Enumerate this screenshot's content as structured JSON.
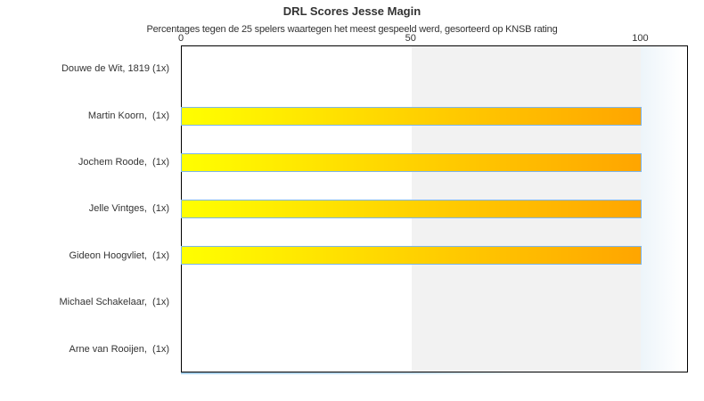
{
  "chart_data": {
    "type": "bar",
    "orientation": "horizontal",
    "title": "DRL Scores Jesse Magin",
    "subtitle": "Percentages tegen de 25 spelers waartegen het meest gespeeld werd, gesorteerd op KNSB rating",
    "categories": [
      "Douwe de Wit, 1819 (1x)",
      "Martin Koorn,  (1x)",
      "Jochem Roode,  (1x)",
      "Jelle Vintges,  (1x)",
      "Gideon Hoogvliet,  (1x)",
      "Michael Schakelaar,  (1x)",
      "Arne van Rooijen,  (1x)"
    ],
    "values": [
      0,
      100,
      100,
      100,
      100,
      0,
      0
    ],
    "xlabel": "",
    "ylabel": "",
    "xlim": [
      0,
      110
    ],
    "ticks": [
      0,
      50,
      100
    ],
    "axis_position": "top",
    "legend": "none",
    "grid": "off",
    "plot_band": {
      "from": 50,
      "to": 100,
      "color": "#f2f2f2"
    },
    "fade_band": {
      "from": 100,
      "to": 110
    },
    "colors": {
      "bar_gradient_start": "#ffff00",
      "bar_gradient_end": "#ffa500",
      "bar_border": "#7cb5ec",
      "plot_border": "#000000",
      "band_gray": "#f2f2f2",
      "text": "#333333"
    }
  }
}
